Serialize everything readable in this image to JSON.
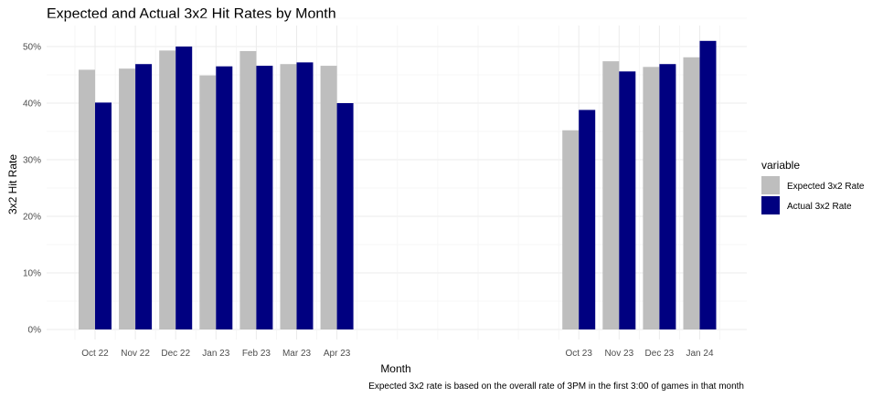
{
  "chart_data": {
    "type": "bar",
    "title": "Expected and Actual 3x2 Hit Rates by Month",
    "xlabel": "Month",
    "ylabel": "3x2 Hit Rate",
    "caption": "Expected 3x2 rate is based on the overall rate of 3PM in the first 3:00 of games in that month",
    "categories": [
      "Oct 22",
      "Nov 22",
      "Dec 22",
      "Jan 23",
      "Feb 23",
      "Mar 23",
      "Apr 23",
      "Oct 23",
      "Nov 23",
      "Dec 23",
      "Jan 24"
    ],
    "x_dates": [
      "2022-10",
      "2022-11",
      "2022-12",
      "2023-01",
      "2023-02",
      "2023-03",
      "2023-04",
      "2023-10",
      "2023-11",
      "2023-12",
      "2024-01"
    ],
    "series": [
      {
        "name": "Expected 3x2 Rate",
        "color": "#bebebe",
        "values": [
          0.459,
          0.461,
          0.493,
          0.449,
          0.492,
          0.469,
          0.466,
          0.352,
          0.474,
          0.464,
          0.481
        ]
      },
      {
        "name": "Actual 3x2 Rate",
        "color": "#000080",
        "values": [
          0.401,
          0.469,
          0.5,
          0.465,
          0.466,
          0.472,
          0.4,
          0.388,
          0.456,
          0.469,
          0.51
        ]
      }
    ],
    "ylim": [
      0,
      0.5
    ],
    "y_ticks": [
      {
        "value": 0.0,
        "label": "0%"
      },
      {
        "value": 0.1,
        "label": "10%"
      },
      {
        "value": 0.2,
        "label": "20%"
      },
      {
        "value": 0.3,
        "label": "30%"
      },
      {
        "value": 0.4,
        "label": "40%"
      },
      {
        "value": 0.5,
        "label": "50%"
      }
    ],
    "grid": true,
    "legend": {
      "title": "variable",
      "position": "right"
    }
  }
}
